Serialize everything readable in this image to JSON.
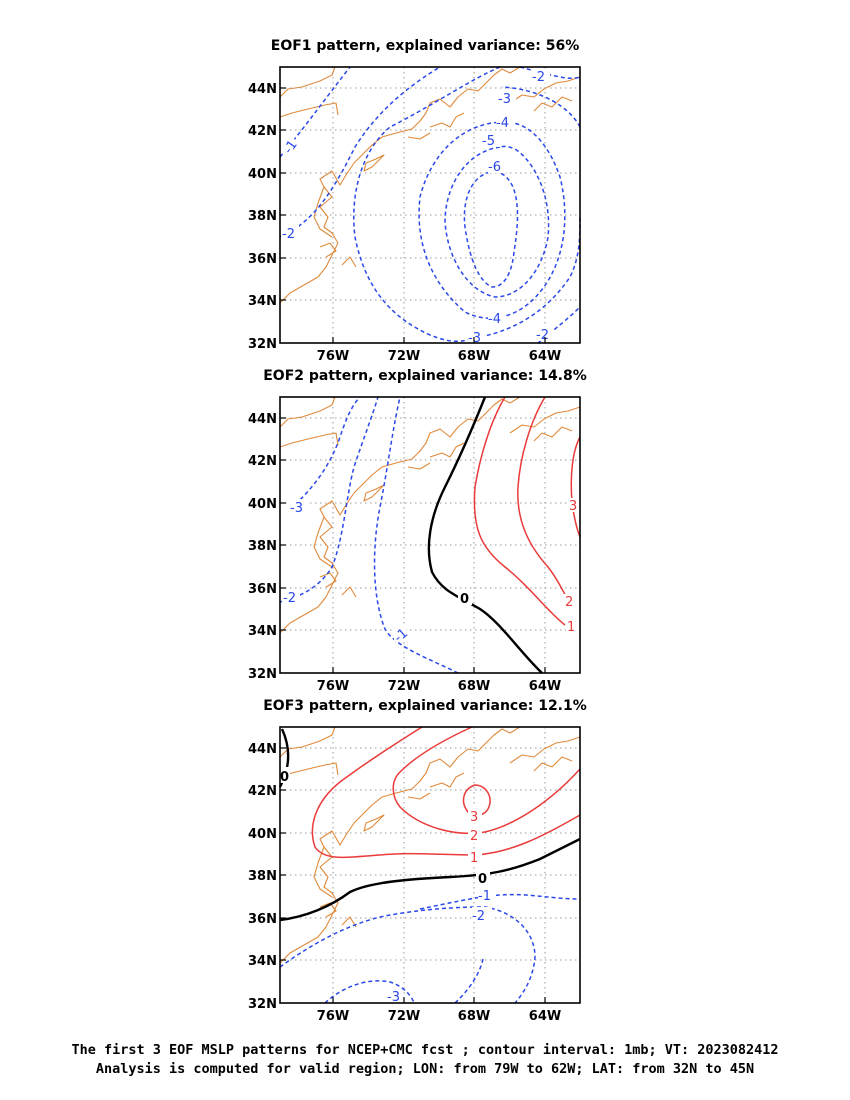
{
  "panels": [
    {
      "title": "EOF1 pattern, explained variance: 56%",
      "contours": [
        {
          "value": "-1",
          "sign": "neg"
        },
        {
          "value": "-2",
          "sign": "neg"
        },
        {
          "value": "-3",
          "sign": "neg"
        },
        {
          "value": "-4",
          "sign": "neg"
        },
        {
          "value": "-5",
          "sign": "neg"
        },
        {
          "value": "-6",
          "sign": "neg"
        }
      ]
    },
    {
      "title": "EOF2 pattern, explained variance: 14.8%",
      "contours": [
        {
          "value": "-1",
          "sign": "neg"
        },
        {
          "value": "-2",
          "sign": "neg"
        },
        {
          "value": "-3",
          "sign": "neg"
        },
        {
          "value": "0",
          "sign": "zero"
        },
        {
          "value": "1",
          "sign": "pos"
        },
        {
          "value": "2",
          "sign": "pos"
        },
        {
          "value": "3",
          "sign": "pos"
        }
      ]
    },
    {
      "title": "EOF3 pattern, explained variance: 12.1%",
      "contours": [
        {
          "value": "-3",
          "sign": "neg"
        },
        {
          "value": "-2",
          "sign": "neg"
        },
        {
          "value": "-1",
          "sign": "neg"
        },
        {
          "value": "0",
          "sign": "zero"
        },
        {
          "value": "1",
          "sign": "pos"
        },
        {
          "value": "2",
          "sign": "pos"
        },
        {
          "value": "3",
          "sign": "pos"
        }
      ]
    }
  ],
  "axes": {
    "lat_ticks": [
      "44N",
      "42N",
      "40N",
      "38N",
      "36N",
      "34N",
      "32N"
    ],
    "lon_ticks": [
      "76W",
      "72W",
      "68W",
      "64W"
    ]
  },
  "caption": {
    "line1": "The first 3 EOF MSLP patterns for NCEP+CMC fcst ; contour interval: 1mb; VT: 2023082412",
    "line2": "Analysis is computed for valid region; LON: from 79W to 62W; LAT: from 32N to 45N"
  },
  "colors": {
    "negative_contour": "#2a48e8",
    "positive_contour": "#ea3a3a",
    "zero_contour": "#000000",
    "coastline": "#e08a3c"
  }
}
